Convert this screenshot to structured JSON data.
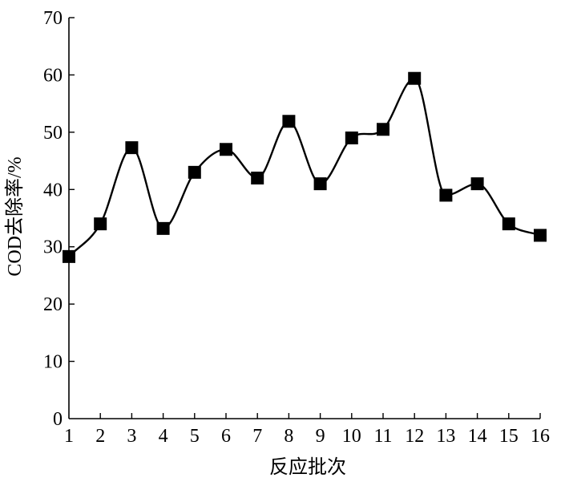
{
  "chart_data": {
    "type": "line",
    "xlabel": "反应批次",
    "ylabel": "COD去除率/%",
    "x": [
      1,
      2,
      3,
      4,
      5,
      6,
      7,
      8,
      9,
      10,
      11,
      12,
      13,
      14,
      15,
      16
    ],
    "x_tick_labels": [
      "1",
      "2",
      "3",
      "4",
      "5",
      "6",
      "7",
      "8",
      "9",
      "10",
      "11",
      "12",
      "13",
      "14",
      "15",
      "16"
    ],
    "y_tick_labels": [
      "0",
      "10",
      "20",
      "30",
      "40",
      "50",
      "60",
      "70"
    ],
    "y_ticks": [
      0,
      10,
      20,
      30,
      40,
      50,
      60,
      70
    ],
    "xlim": [
      1,
      16
    ],
    "ylim": [
      0,
      70
    ],
    "grid": false,
    "legend": "none",
    "series": [
      {
        "marker": "square",
        "line_style": "smooth",
        "color": "#000000",
        "values": [
          28.3,
          34.0,
          47.3,
          33.2,
          43.0,
          47.0,
          42.0,
          51.9,
          41.0,
          49.0,
          50.5,
          59.4,
          39.0,
          41.0,
          34.0,
          32.0
        ]
      }
    ]
  }
}
